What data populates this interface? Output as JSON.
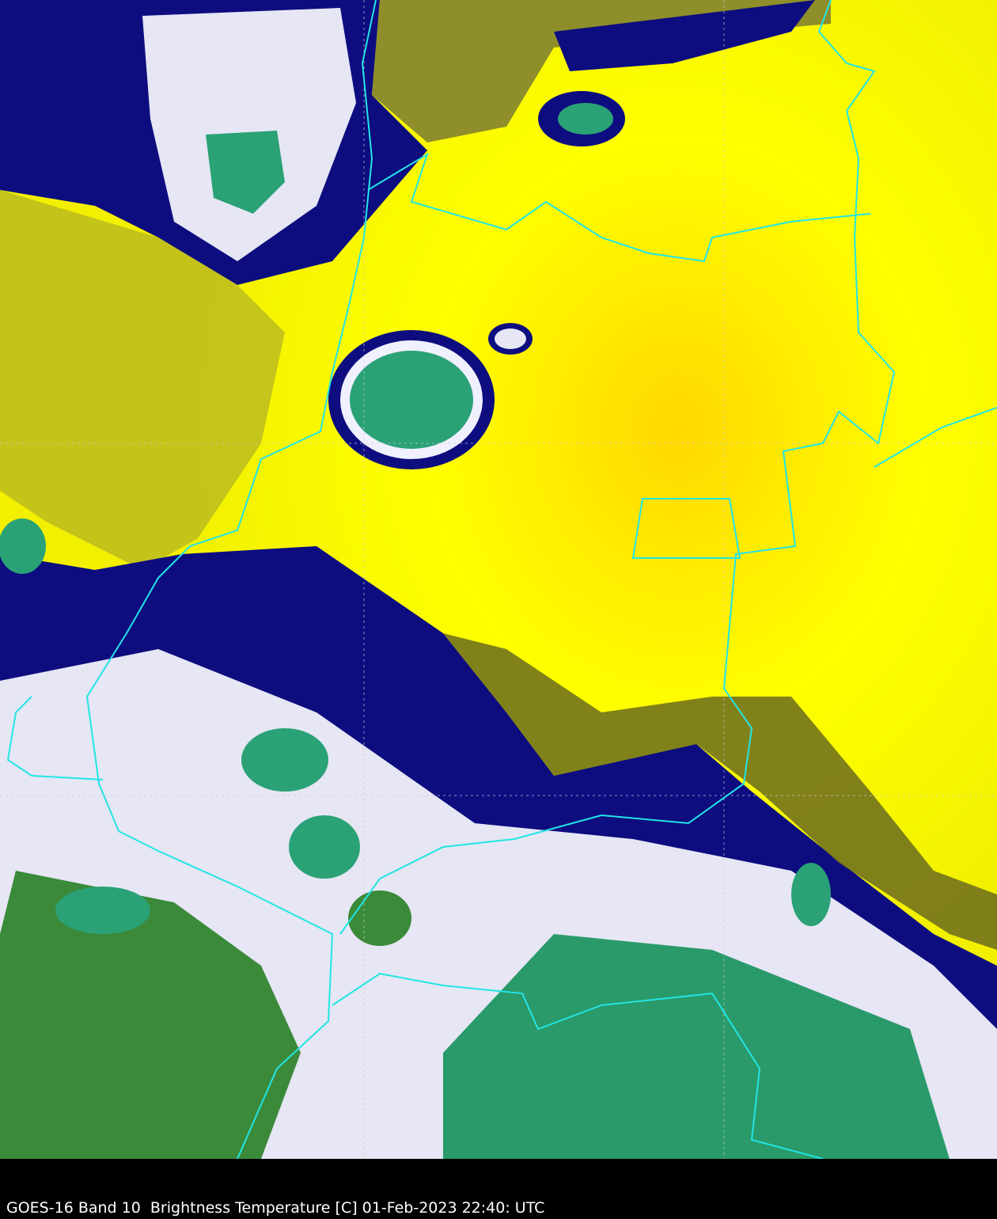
{
  "caption": "GOES-16 Band 10  Brightness Temperature [C] 01-Feb-2023 22:40: UTC",
  "map": {
    "satellite": "GOES-16",
    "band": "Band 10",
    "product": "Brightness Temperature [C]",
    "timestamp": "01-Feb-2023 22:40: UTC",
    "border_color": "#22e5e5",
    "colors": {
      "warm_clear": "#ffff00",
      "warm_peak": "#ffd800",
      "mid_olive": "#6b6b1e",
      "cold_navy": "#0a0a7a",
      "cold_white": "#f0f0ff",
      "coldest_green": "#2aa276",
      "deep_green": "#3a8a3a",
      "grid": "#cccccc"
    }
  }
}
